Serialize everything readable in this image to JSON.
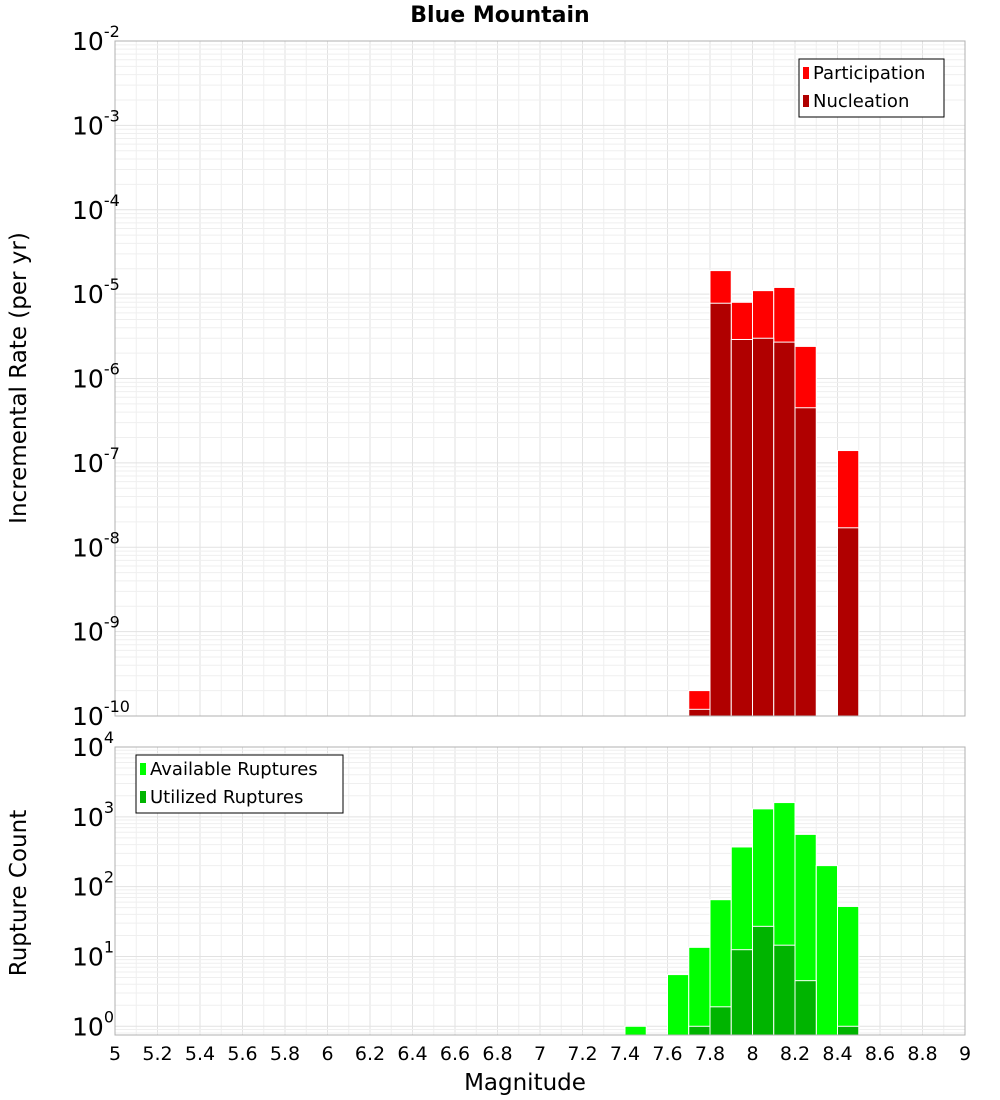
{
  "chart_data": [
    {
      "type": "bar",
      "title": "Blue Mountain",
      "xlabel": "",
      "ylabel": "Incremental Rate (per yr)",
      "yscale": "log",
      "ylim": [
        1e-10,
        0.01
      ],
      "xlim": [
        5,
        9
      ],
      "y_tick_exponents": [
        "-2",
        "-3",
        "-4",
        "-5",
        "-6",
        "-7",
        "-8",
        "-9",
        "-10"
      ],
      "y_tick_base": "10",
      "legend_position": "top-right",
      "bin_width": 0.1,
      "series": [
        {
          "name": "Participation",
          "color": "#ff0000",
          "x": [
            7.75,
            7.85,
            7.95,
            8.05,
            8.15,
            8.25,
            8.45
          ],
          "values": [
            2e-10,
            1.9e-05,
            8e-06,
            1.1e-05,
            1.2e-05,
            2.4e-06,
            1.4e-07
          ]
        },
        {
          "name": "Nucleation",
          "color": "#b00000",
          "x": [
            7.75,
            7.85,
            7.95,
            8.05,
            8.15,
            8.25,
            8.45
          ],
          "values": [
            1.2e-10,
            7.8e-06,
            2.9e-06,
            3e-06,
            2.7e-06,
            4.5e-07,
            1.7e-08
          ]
        }
      ]
    },
    {
      "type": "bar",
      "title": "",
      "xlabel": "Magnitude",
      "ylabel": "Rupture Count",
      "yscale": "log",
      "ylim": [
        0.75,
        10000
      ],
      "xlim": [
        5,
        9
      ],
      "y_tick_exponents": [
        "4",
        "3",
        "2",
        "1",
        "0"
      ],
      "y_tick_base": "10",
      "x_tick_labels": [
        "5",
        "5.2",
        "5.4",
        "5.6",
        "5.8",
        "6",
        "6.2",
        "6.4",
        "6.6",
        "6.8",
        "7",
        "7.2",
        "7.4",
        "7.6",
        "7.8",
        "8",
        "8.2",
        "8.4",
        "8.6",
        "8.8",
        "9"
      ],
      "legend_position": "top-left",
      "bin_width": 0.1,
      "series": [
        {
          "name": "Available Ruptures",
          "color": "#00ff00",
          "x": [
            7.45,
            7.65,
            7.75,
            7.85,
            7.95,
            8.05,
            8.15,
            8.25,
            8.35,
            8.45
          ],
          "values": [
            1,
            5.5,
            13.5,
            65,
            370,
            1300,
            1600,
            560,
            200,
            52
          ]
        },
        {
          "name": "Utilized Ruptures",
          "color": "#00b400",
          "x": [
            7.75,
            7.85,
            7.95,
            8.05,
            8.15,
            8.25,
            8.45
          ],
          "values": [
            1,
            1.9,
            12.5,
            27,
            14.5,
            4.5,
            1
          ]
        }
      ]
    }
  ]
}
